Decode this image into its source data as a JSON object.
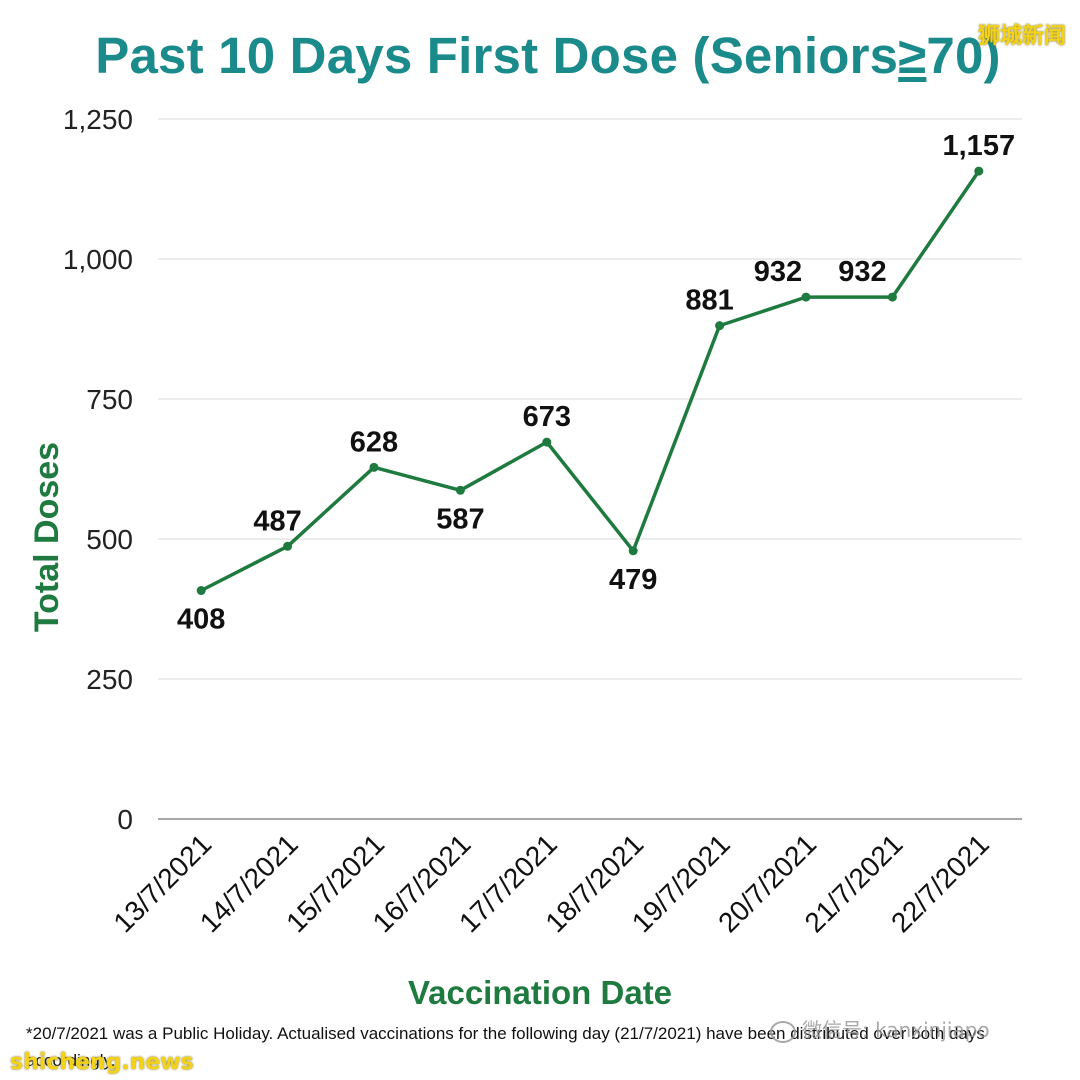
{
  "chart_data": {
    "type": "line",
    "title": "Past 10 Days First Dose (Seniors≥70)",
    "xlabel": "Vaccination Date",
    "ylabel": "Total Doses",
    "categories": [
      "13/7/2021",
      "14/7/2021",
      "15/7/2021",
      "16/7/2021",
      "17/7/2021",
      "18/7/2021",
      "19/7/2021",
      "20/7/2021",
      "21/7/2021",
      "22/7/2021"
    ],
    "series": [
      {
        "values": [
          408,
          487,
          628,
          587,
          673,
          479,
          881,
          932,
          932,
          1157
        ]
      }
    ],
    "data_labels": [
      "408",
      "487",
      "628",
      "587",
      "673",
      "479",
      "881",
      "932",
      "932",
      "1,157"
    ],
    "y_ticks": [
      0,
      250,
      500,
      750,
      1000,
      1250
    ],
    "y_tick_labels": [
      "0",
      "250",
      "500",
      "750",
      "1,000",
      "1,250"
    ],
    "ylim": [
      0,
      1250
    ],
    "grid": true,
    "line_color": "#1e7a3e",
    "title_color": "#1a8a8a",
    "axis_title_color": "#1e7a3e"
  },
  "title_parts": {
    "before": "Past 10 Days First Dose (Seniors",
    "geq": "≥",
    "after": "70)"
  },
  "footnote": "*20/7/2021 was a Public Holiday. Actualised vaccinations for the following day (21/7/2021) have been distributed over both days accordingly.",
  "watermarks": {
    "top_right": "狮城新闻",
    "bottom_left": "shicheng.news",
    "wechat": "微信号: kanxinjiapo"
  }
}
